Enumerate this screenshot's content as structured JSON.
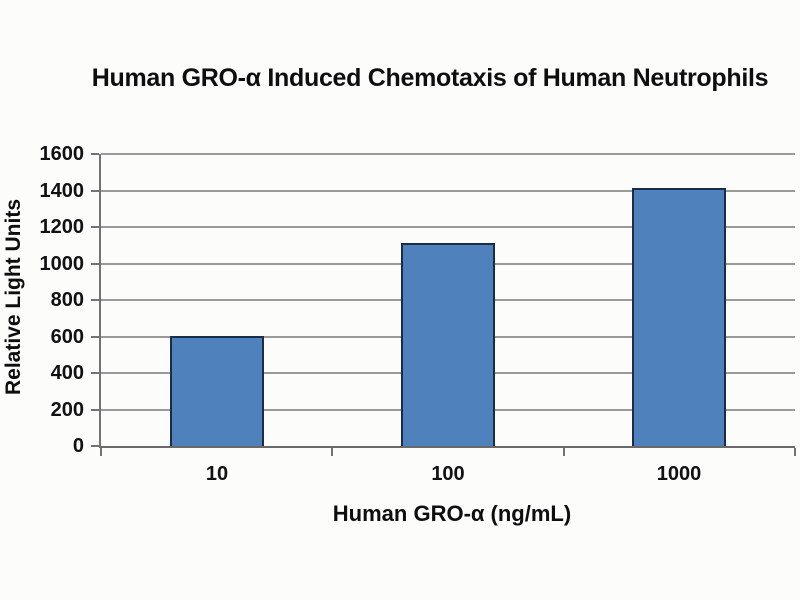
{
  "chart_data": {
    "type": "bar",
    "title": "Human GRO-α Induced Chemotaxis of Human Neutrophils",
    "xlabel": "Human GRO-α (ng/mL)",
    "ylabel": "Relative Light Units",
    "categories": [
      "10",
      "100",
      "1000"
    ],
    "values": [
      600,
      1115,
      1415
    ],
    "ylim": [
      0,
      1600
    ],
    "ytick_step": 200,
    "yticks": [
      0,
      200,
      400,
      600,
      800,
      1000,
      1200,
      1400,
      1600
    ],
    "grid": "horizontal",
    "legend": "none",
    "bar_fill": "#4F81BD",
    "bar_border": "#1B2C48"
  },
  "styling": {
    "background": "#FCFCFB",
    "gridline_color": "#9A9A9A",
    "axis_color": "#737373",
    "text_color": "#111111"
  }
}
